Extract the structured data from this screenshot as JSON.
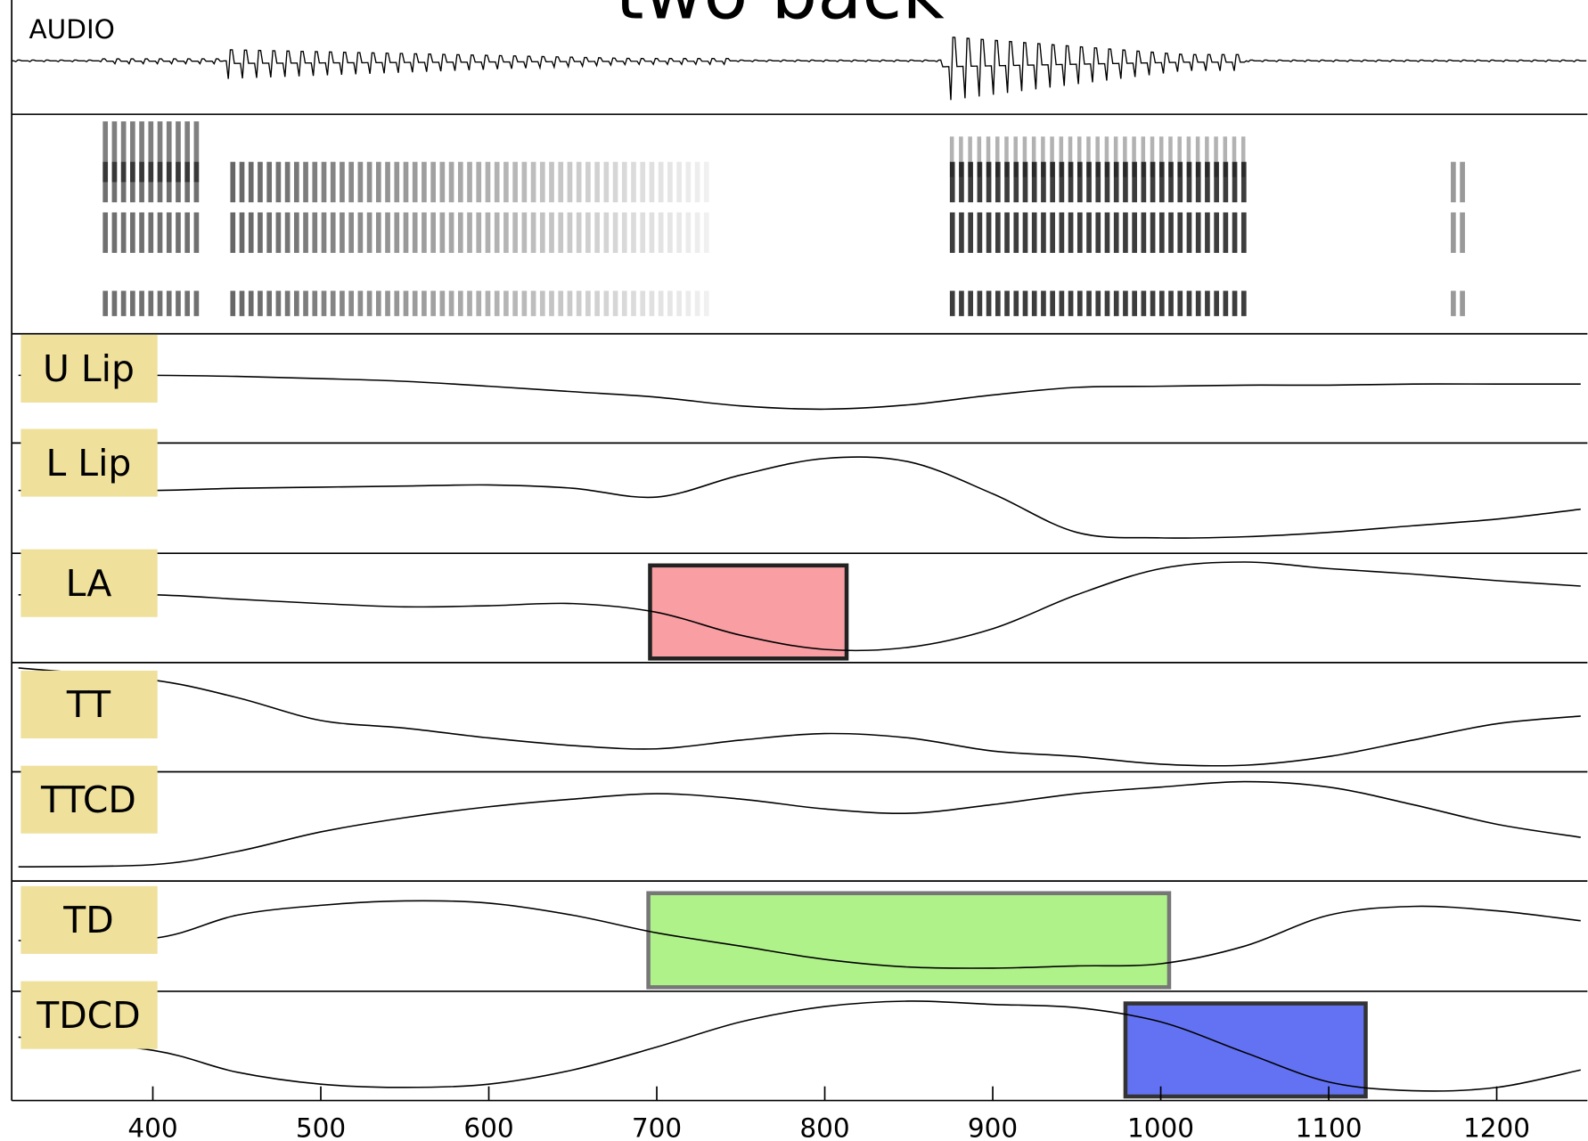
{
  "chart_data": {
    "type": "line",
    "title": "two back",
    "audio_label": "AUDIO",
    "xlim": [
      316,
      1254
    ],
    "xticks": [
      400,
      500,
      600,
      700,
      800,
      900,
      1000,
      1100,
      1200
    ],
    "ylim": [
      0,
      1
    ],
    "x": [
      320,
      400,
      450,
      500,
      550,
      600,
      650,
      700,
      750,
      800,
      850,
      900,
      950,
      1000,
      1050,
      1100,
      1150,
      1200,
      1250
    ],
    "series": [
      {
        "name": "U Lip",
        "color": "#000000",
        "values": [
          0.62,
          0.62,
          0.61,
          0.59,
          0.565,
          0.52,
          0.47,
          0.42,
          0.34,
          0.31,
          0.35,
          0.44,
          0.51,
          0.52,
          0.53,
          0.53,
          0.54,
          0.54,
          0.54
        ],
        "gestures": []
      },
      {
        "name": "L Lip",
        "color": "#000000",
        "values": [
          0.57,
          0.57,
          0.59,
          0.6,
          0.61,
          0.62,
          0.59,
          0.51,
          0.71,
          0.86,
          0.83,
          0.54,
          0.19,
          0.14,
          0.15,
          0.19,
          0.25,
          0.31,
          0.4
        ],
        "gestures": []
      },
      {
        "name": "LA",
        "color": "#000000",
        "values": [
          0.62,
          0.62,
          0.58,
          0.54,
          0.51,
          0.52,
          0.54,
          0.46,
          0.25,
          0.12,
          0.14,
          0.31,
          0.62,
          0.86,
          0.92,
          0.86,
          0.81,
          0.75,
          0.7
        ],
        "gestures": [
          {
            "start": 696,
            "end": 813,
            "color": "#f99ea3",
            "edge": "#222222"
          }
        ]
      },
      {
        "name": "TT",
        "color": "#000000",
        "values": [
          0.95,
          0.84,
          0.68,
          0.47,
          0.4,
          0.31,
          0.24,
          0.21,
          0.29,
          0.35,
          0.31,
          0.19,
          0.14,
          0.07,
          0.06,
          0.14,
          0.29,
          0.44,
          0.51
        ],
        "gestures": []
      },
      {
        "name": "TTCD",
        "color": "#000000",
        "values": [
          0.13,
          0.15,
          0.27,
          0.45,
          0.58,
          0.68,
          0.75,
          0.8,
          0.75,
          0.66,
          0.62,
          0.7,
          0.8,
          0.86,
          0.91,
          0.86,
          0.7,
          0.52,
          0.4
        ],
        "gestures": []
      },
      {
        "name": "TD",
        "color": "#000000",
        "values": [
          0.46,
          0.48,
          0.69,
          0.78,
          0.82,
          0.8,
          0.69,
          0.53,
          0.41,
          0.29,
          0.22,
          0.21,
          0.23,
          0.25,
          0.41,
          0.69,
          0.77,
          0.73,
          0.64
        ],
        "gestures": [
          {
            "start": 695,
            "end": 1005,
            "color": "#b0f28a",
            "edge": "#777777"
          }
        ]
      },
      {
        "name": "TDCD",
        "color": "#000000",
        "values": [
          0.58,
          0.46,
          0.26,
          0.15,
          0.12,
          0.15,
          0.28,
          0.49,
          0.72,
          0.86,
          0.91,
          0.88,
          0.85,
          0.72,
          0.44,
          0.17,
          0.09,
          0.12,
          0.28
        ],
        "gestures": [
          {
            "start": 979,
            "end": 1122,
            "color": "#6372f2",
            "edge": "#333333"
          }
        ]
      }
    ]
  }
}
